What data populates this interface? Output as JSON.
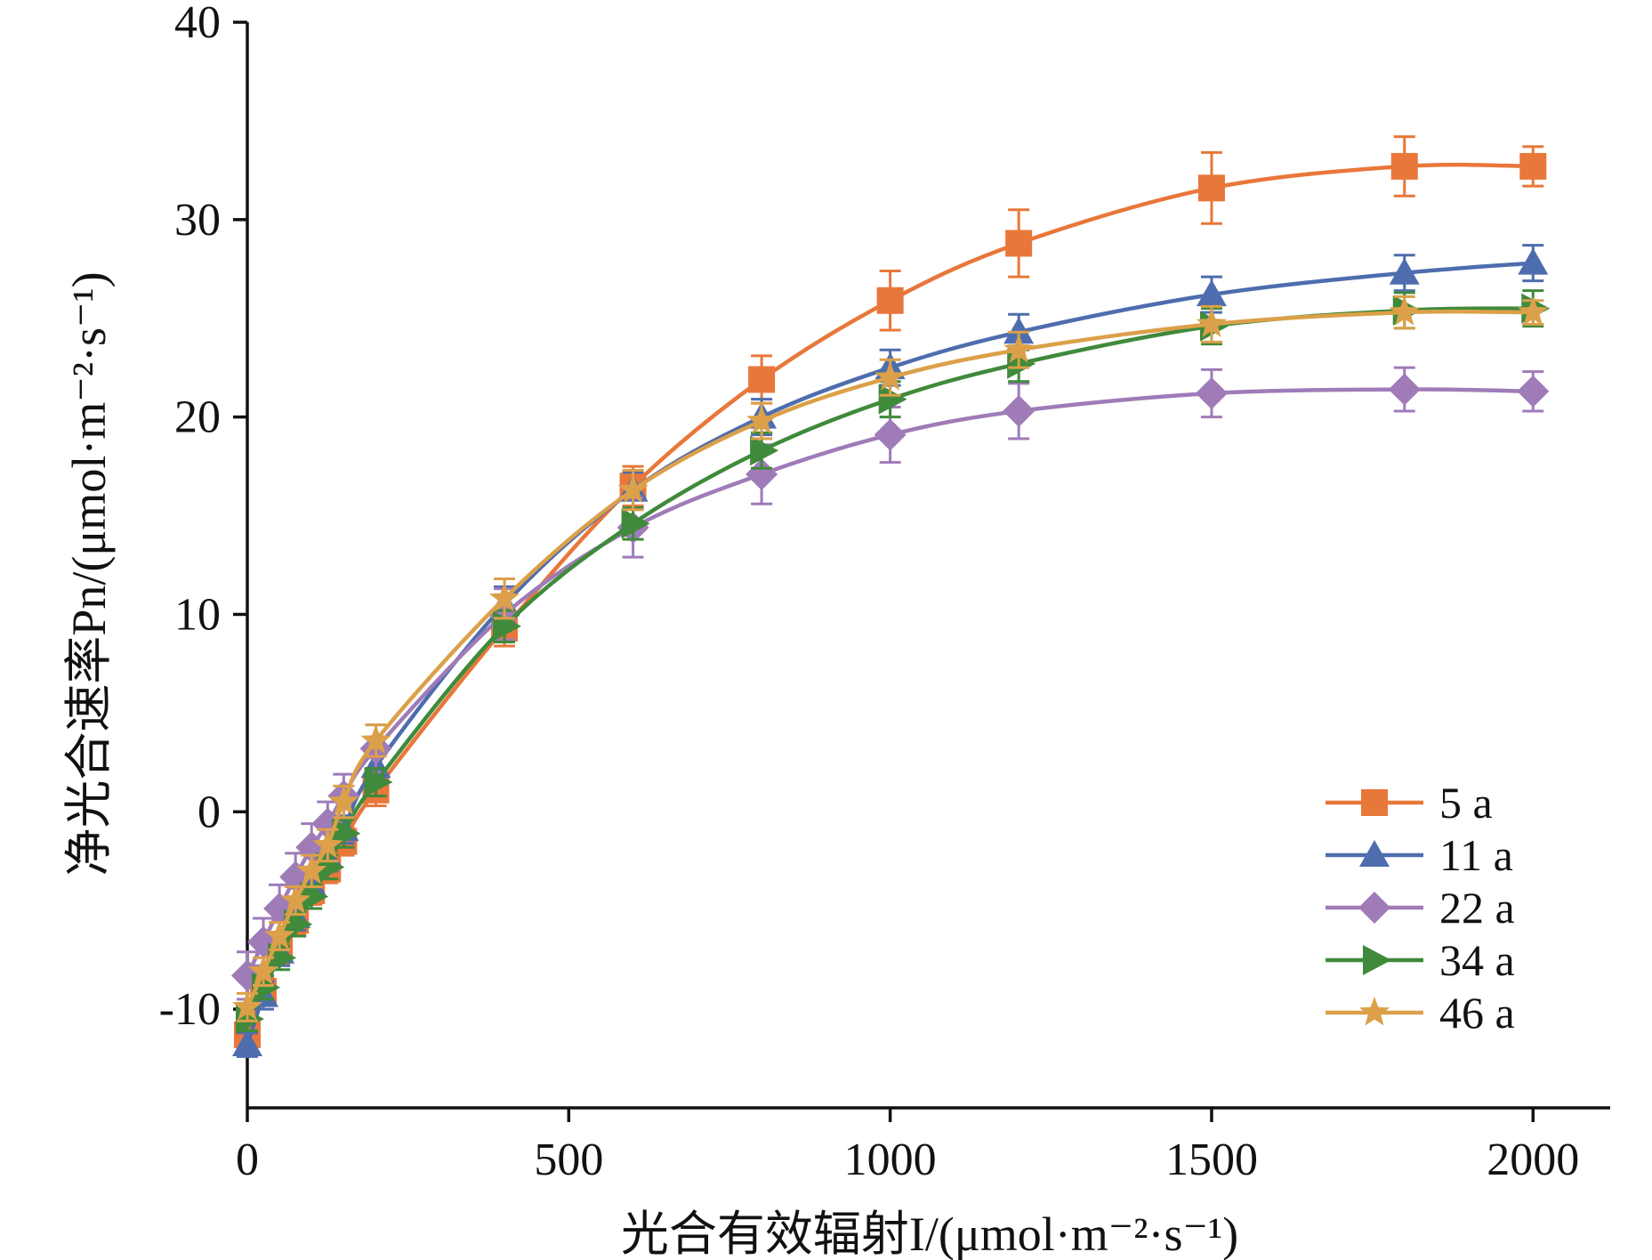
{
  "chart_data": {
    "type": "line",
    "xlabel": "光合有效辐射I/(μmol·m⁻²·s⁻¹)",
    "ylabel": "净光合速率Pn/(μmol·m⁻²·s⁻¹)",
    "xlim": [
      0,
      2120
    ],
    "ylim": [
      -15,
      40
    ],
    "xticks": [
      0,
      500,
      1000,
      1500,
      2000
    ],
    "yticks": [
      -10,
      0,
      10,
      20,
      30,
      40
    ],
    "x_tick_labels": [
      "0",
      "500",
      "1000",
      "1500",
      "2000"
    ],
    "y_tick_labels": [
      "-10",
      "0",
      "10",
      "20",
      "30",
      "40"
    ],
    "grid": false,
    "legend_position": "bottom-right",
    "x": [
      0,
      25,
      50,
      75,
      100,
      125,
      150,
      200,
      400,
      600,
      800,
      1000,
      1200,
      1500,
      1800,
      2000
    ],
    "series": [
      {
        "name": "5 a",
        "color": "#E8773A",
        "marker": "square",
        "values": [
          -11.3,
          -9.1,
          -7.0,
          -5.5,
          -4.0,
          -2.9,
          -1.5,
          1.1,
          9.3,
          16.5,
          21.9,
          25.9,
          28.8,
          31.6,
          32.7,
          32.7
        ],
        "errors": [
          0.6,
          0.7,
          0.7,
          0.7,
          0.7,
          0.7,
          0.7,
          0.8,
          0.9,
          1.0,
          1.2,
          1.5,
          1.7,
          1.8,
          1.5,
          1.0
        ]
      },
      {
        "name": "11 a",
        "color": "#4E6DAE",
        "marker": "triangle-up",
        "values": [
          -11.8,
          -9.3,
          -7.1,
          -5.3,
          -3.7,
          -2.3,
          -0.9,
          2.3,
          10.5,
          16.3,
          20.0,
          22.5,
          24.3,
          26.2,
          27.3,
          27.8
        ],
        "errors": [
          0.6,
          0.7,
          0.7,
          0.7,
          0.7,
          0.7,
          0.7,
          0.8,
          0.9,
          0.9,
          0.9,
          0.9,
          0.9,
          0.9,
          0.9,
          0.9
        ]
      },
      {
        "name": "22 a",
        "color": "#9F7BB8",
        "marker": "diamond",
        "values": [
          -8.3,
          -6.6,
          -4.9,
          -3.3,
          -1.8,
          -0.6,
          0.8,
          3.2,
          10.0,
          14.4,
          17.1,
          19.1,
          20.3,
          21.2,
          21.4,
          21.3
        ],
        "errors": [
          1.2,
          1.2,
          1.2,
          1.2,
          1.2,
          1.1,
          1.1,
          1.2,
          1.3,
          1.5,
          1.5,
          1.4,
          1.4,
          1.2,
          1.1,
          1.0
        ]
      },
      {
        "name": "34 a",
        "color": "#3F8A3B",
        "marker": "triangle-right",
        "values": [
          -10.5,
          -8.9,
          -7.4,
          -5.7,
          -4.3,
          -2.8,
          -1.1,
          1.5,
          9.4,
          14.6,
          18.3,
          20.9,
          22.7,
          24.6,
          25.4,
          25.5
        ],
        "errors": [
          0.6,
          0.6,
          0.6,
          0.6,
          0.6,
          0.6,
          0.7,
          0.7,
          0.8,
          0.8,
          0.9,
          0.9,
          0.9,
          0.9,
          0.9,
          0.9
        ]
      },
      {
        "name": "46 a",
        "color": "#DBA049",
        "marker": "star",
        "values": [
          -9.9,
          -8.1,
          -6.3,
          -4.5,
          -3.0,
          -1.7,
          0.5,
          3.6,
          10.8,
          16.3,
          19.8,
          22.0,
          23.4,
          24.7,
          25.3,
          25.3
        ],
        "errors": [
          0.7,
          0.7,
          0.7,
          0.7,
          0.8,
          0.8,
          0.8,
          0.8,
          1.0,
          1.0,
          0.9,
          0.9,
          0.9,
          0.9,
          0.8,
          0.6
        ]
      }
    ]
  }
}
